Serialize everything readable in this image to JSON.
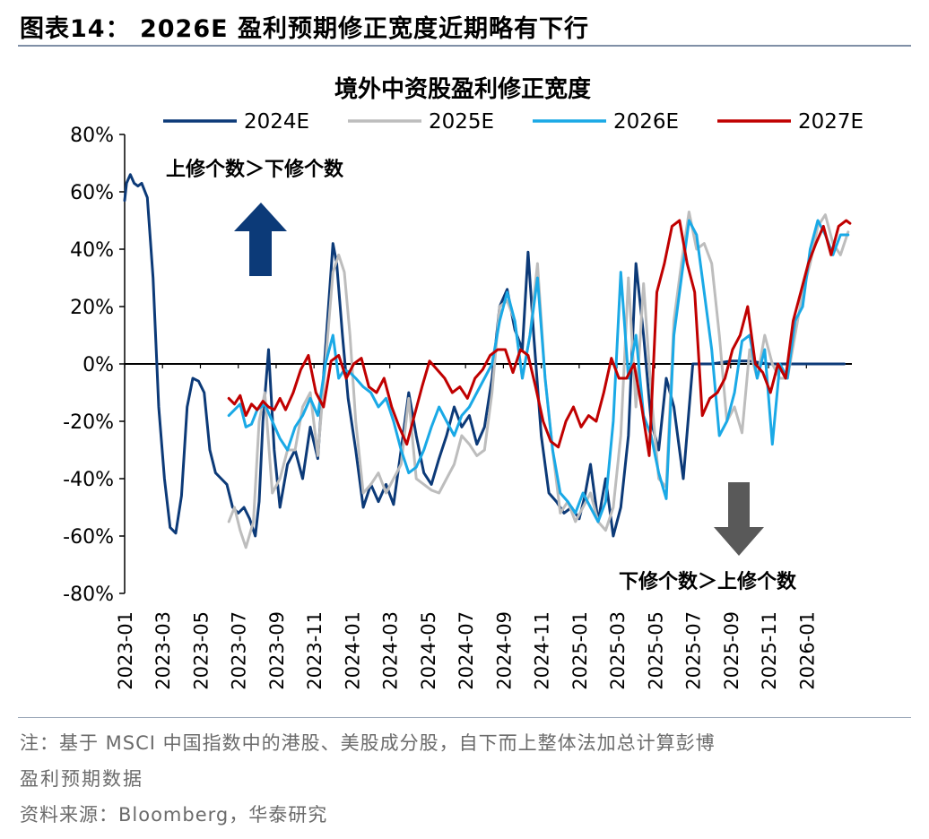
{
  "figure": {
    "title": "图表14：  2026E 盈利预期修正宽度近期略有下行",
    "note_line1": "注：基于 MSCI 中国指数中的港股、美股成分股，自下而上整体法加总计算彭博",
    "note_line2": "盈利预期数据",
    "source": "资料来源：Bloomberg，华泰研究"
  },
  "colors": {
    "2024E": "#0c3a78",
    "2025E": "#bdbdbd",
    "2026E": "#1aa9e6",
    "2027E": "#c00000",
    "arrow_up": "#0c3a78",
    "arrow_down": "#595959"
  },
  "chart_data": {
    "type": "line",
    "title": "境外中资股盈利修正宽度",
    "xlabel": "",
    "ylabel": "",
    "ylim": [
      -80,
      80
    ],
    "yticks": [
      "80%",
      "60%",
      "40%",
      "20%",
      "0%",
      "-20%",
      "-40%",
      "-60%",
      "-80%"
    ],
    "xticks": [
      "2023-01",
      "2023-03",
      "2023-05",
      "2023-07",
      "2023-09",
      "2023-11",
      "2024-01",
      "2024-03",
      "2024-05",
      "2024-07",
      "2024-09",
      "2024-11",
      "2025-01",
      "2025-03",
      "2025-05",
      "2025-07",
      "2025-09",
      "2025-11",
      "2026-01"
    ],
    "legend": [
      "2024E",
      "2025E",
      "2026E",
      "2027E"
    ],
    "legend_position": "top",
    "annotations": {
      "up": "上修个数＞下修个数",
      "down": "下修个数＞上修个数"
    },
    "x_unit": "months since 2023-01",
    "series": [
      {
        "name": "2024E",
        "x": [
          0,
          0.1,
          0.3,
          0.5,
          0.7,
          0.9,
          1.2,
          1.5,
          1.8,
          2.1,
          2.4,
          2.7,
          3.0,
          3.3,
          3.6,
          3.9,
          4.2,
          4.5,
          4.8,
          5.1,
          5.4,
          5.7,
          6.0,
          6.3,
          6.6,
          6.9,
          7.1,
          7.3,
          7.6,
          7.9,
          8.2,
          8.6,
          9.0,
          9.4,
          9.8,
          10.2,
          10.6,
          11.0,
          11.2,
          11.5,
          11.8,
          12.2,
          12.6,
          13.0,
          13.4,
          13.8,
          14.2,
          14.6,
          15.0,
          15.4,
          15.8,
          16.2,
          16.6,
          17.0,
          17.4,
          17.8,
          18.2,
          18.6,
          19.0,
          19.4,
          19.8,
          20.2,
          20.6,
          21.0,
          21.3,
          21.6,
          22.0,
          22.4,
          22.8,
          23.2,
          23.6,
          24.0,
          24.3,
          24.6,
          25.0,
          25.4,
          25.8,
          26.2,
          26.6,
          27.0,
          27.4,
          27.8,
          28.2,
          28.6,
          29.0,
          29.5,
          30.0,
          31.0,
          32.0,
          33.0,
          34.0,
          35.0,
          36.0,
          37.0,
          38.0
        ],
        "values": [
          57,
          63,
          66,
          63,
          62,
          63,
          58,
          30,
          -15,
          -40,
          -57,
          -59,
          -46,
          -15,
          -5,
          -6,
          -10,
          -30,
          -38,
          -40,
          -42,
          -50,
          -52,
          -50,
          -54,
          -60,
          -48,
          -20,
          5,
          -30,
          -50,
          -35,
          -30,
          -40,
          -22,
          -33,
          5,
          42,
          35,
          10,
          -12,
          -30,
          -50,
          -42,
          -48,
          -42,
          -49,
          -30,
          -10,
          -25,
          -38,
          -42,
          -33,
          -25,
          -15,
          -22,
          -18,
          -28,
          -22,
          -5,
          20,
          26,
          12,
          5,
          39,
          10,
          -25,
          -45,
          -48,
          -52,
          -50,
          -54,
          -46,
          -35,
          -55,
          -40,
          -60,
          -50,
          -25,
          35,
          10,
          -20,
          -30,
          -5,
          -15,
          -40,
          0,
          0,
          1,
          1,
          0,
          0,
          0,
          0,
          0
        ]
      },
      {
        "name": "2025E",
        "x": [
          5.5,
          5.8,
          6.1,
          6.4,
          6.8,
          7.1,
          7.4,
          7.8,
          8.2,
          8.6,
          9.0,
          9.4,
          9.8,
          10.2,
          10.6,
          11.0,
          11.3,
          11.6,
          11.9,
          12.2,
          12.6,
          13.0,
          13.4,
          13.8,
          14.2,
          14.6,
          15.0,
          15.4,
          15.8,
          16.2,
          16.6,
          17.0,
          17.4,
          17.8,
          18.2,
          18.6,
          19.0,
          19.4,
          19.8,
          20.2,
          20.6,
          21.0,
          21.4,
          21.8,
          22.2,
          22.6,
          23.0,
          23.4,
          23.8,
          24.2,
          24.6,
          25.0,
          25.4,
          25.8,
          26.2,
          26.6,
          27.0,
          27.4,
          27.8,
          28.2,
          28.6,
          29.0,
          29.4,
          29.8,
          30.2,
          30.6,
          31.0,
          31.4,
          31.8,
          32.2,
          32.6,
          33.0,
          33.4,
          33.8,
          34.2,
          34.6,
          35.0,
          35.4,
          35.8,
          36.2,
          36.6,
          37.0,
          37.4,
          37.8,
          38.2
        ],
        "values": [
          -55,
          -50,
          -58,
          -64,
          -55,
          -20,
          -10,
          -45,
          -40,
          -30,
          -30,
          -15,
          -10,
          -32,
          0,
          32,
          38,
          32,
          10,
          -20,
          -45,
          -42,
          -38,
          -45,
          -40,
          -35,
          -12,
          -40,
          -42,
          -44,
          -45,
          -40,
          -35,
          -25,
          -28,
          -32,
          -30,
          -10,
          20,
          22,
          15,
          -5,
          10,
          35,
          -5,
          -30,
          -52,
          -48,
          -55,
          -50,
          -45,
          -55,
          -58,
          -50,
          -25,
          30,
          -15,
          28,
          -10,
          -40,
          -43,
          15,
          35,
          53,
          40,
          42,
          35,
          10,
          -20,
          -15,
          -24,
          5,
          -5,
          10,
          0,
          -5,
          -5,
          10,
          25,
          35,
          48,
          52,
          42,
          38,
          46
        ]
      },
      {
        "name": "2026E",
        "x": [
          5.5,
          5.8,
          6.1,
          6.4,
          6.7,
          7.0,
          7.4,
          7.8,
          8.2,
          8.6,
          9.0,
          9.4,
          9.8,
          10.2,
          10.6,
          11.0,
          11.3,
          11.6,
          11.9,
          12.2,
          12.6,
          13.0,
          13.4,
          13.8,
          14.2,
          14.6,
          15.0,
          15.4,
          15.8,
          16.2,
          16.6,
          17.0,
          17.4,
          17.8,
          18.2,
          18.6,
          19.0,
          19.4,
          19.8,
          20.2,
          20.6,
          21.0,
          21.4,
          21.8,
          22.2,
          22.6,
          23.0,
          23.4,
          23.8,
          24.2,
          24.6,
          25.0,
          25.4,
          25.8,
          26.2,
          26.6,
          27.0,
          27.4,
          27.8,
          28.2,
          28.6,
          29.0,
          29.4,
          29.8,
          30.2,
          30.6,
          31.0,
          31.4,
          31.8,
          32.2,
          32.6,
          33.0,
          33.4,
          33.8,
          34.2,
          34.6,
          35.0,
          35.4,
          35.8,
          36.2,
          36.6,
          37.0,
          37.4,
          37.8,
          38.2
        ],
        "values": [
          -18,
          -16,
          -14,
          -22,
          -21,
          -16,
          -14,
          -20,
          -26,
          -30,
          -22,
          -18,
          -12,
          -18,
          0,
          10,
          -5,
          -2,
          -3,
          -5,
          -8,
          -10,
          -15,
          -12,
          -20,
          -30,
          -38,
          -36,
          -30,
          -22,
          -15,
          -20,
          -25,
          -18,
          -15,
          -10,
          -5,
          0,
          15,
          25,
          15,
          -5,
          10,
          30,
          -5,
          -30,
          -45,
          -48,
          -52,
          -45,
          -50,
          -55,
          -48,
          -20,
          32,
          -5,
          10,
          -18,
          -25,
          -38,
          -47,
          10,
          30,
          50,
          45,
          25,
          5,
          -25,
          -20,
          -10,
          8,
          10,
          -5,
          5,
          -28,
          0,
          -5,
          15,
          20,
          40,
          50,
          45,
          38,
          45,
          45
        ]
      },
      {
        "name": "2027E",
        "x": [
          5.5,
          5.8,
          6.1,
          6.4,
          6.7,
          7.0,
          7.3,
          7.6,
          7.9,
          8.2,
          8.5,
          8.9,
          9.3,
          9.7,
          10.1,
          10.5,
          10.9,
          11.3,
          11.7,
          12.1,
          12.5,
          12.9,
          13.3,
          13.7,
          14.1,
          14.5,
          14.9,
          15.3,
          15.7,
          16.1,
          16.5,
          16.9,
          17.3,
          17.7,
          18.1,
          18.5,
          18.9,
          19.3,
          19.7,
          20.1,
          20.5,
          20.9,
          21.3,
          21.7,
          22.1,
          22.5,
          22.9,
          23.3,
          23.7,
          24.1,
          24.5,
          24.9,
          25.3,
          25.7,
          26.1,
          26.5,
          26.9,
          27.3,
          27.7,
          28.1,
          28.5,
          28.9,
          29.3,
          29.7,
          30.1,
          30.5,
          30.9,
          31.3,
          31.7,
          32.1,
          32.5,
          32.9,
          33.3,
          33.7,
          34.1,
          34.5,
          34.9,
          35.3,
          35.7,
          36.1,
          36.5,
          36.9,
          37.3,
          37.7,
          38.1,
          38.3
        ],
        "values": [
          -12,
          -14,
          -11,
          -18,
          -14,
          -16,
          -13,
          -15,
          -16,
          -12,
          -16,
          -10,
          -2,
          3,
          -10,
          -15,
          1,
          3,
          -5,
          0,
          2,
          -8,
          -10,
          -5,
          -15,
          -22,
          -28,
          -18,
          -8,
          1,
          -2,
          -5,
          -10,
          -8,
          -12,
          -5,
          -2,
          3,
          5,
          5,
          -3,
          5,
          3,
          -8,
          -20,
          -27,
          -29,
          -20,
          -15,
          -22,
          -18,
          -20,
          -10,
          2,
          -5,
          -5,
          0,
          -15,
          -32,
          25,
          35,
          48,
          50,
          35,
          25,
          -18,
          -12,
          -10,
          -5,
          5,
          10,
          20,
          0,
          -3,
          -10,
          0,
          -5,
          15,
          25,
          35,
          42,
          48,
          38,
          48,
          50,
          49
        ]
      }
    ]
  }
}
